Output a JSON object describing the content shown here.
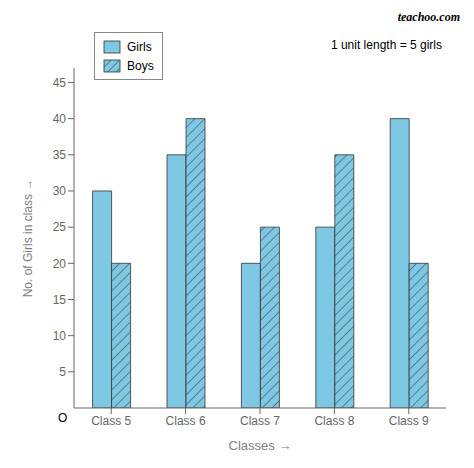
{
  "chart_data": {
    "type": "bar",
    "categories": [
      "Class 5",
      "Class 6",
      "Class 7",
      "Class 8",
      "Class 9"
    ],
    "series": [
      {
        "name": "Girls",
        "color": "#7ec8e3",
        "values": [
          30,
          35,
          20,
          25,
          40
        ]
      },
      {
        "name": "Boys",
        "color": "#7ec8e3",
        "values": [
          20,
          40,
          25,
          35,
          20
        ]
      }
    ],
    "xlabel": "Classes →",
    "ylabel": "No. of Girls in class →",
    "ylim": [
      0,
      47
    ],
    "yticks": [
      5,
      10,
      15,
      20,
      25,
      30,
      35,
      40,
      45
    ],
    "annotations": [
      "O",
      "1 unit length = 5 girls",
      "teachoo.com"
    ],
    "grid": false
  }
}
